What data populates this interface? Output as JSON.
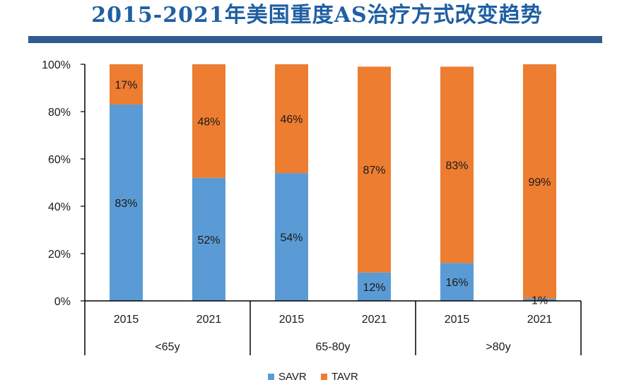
{
  "title": "2015-2021年美国重度AS治疗方式改变趋势",
  "colors": {
    "title": "#1f5fa3",
    "rule": "#2f5c8f",
    "savr": "#5b9bd5",
    "tavr": "#ed7d31",
    "axis": "#000000"
  },
  "chart_data": {
    "type": "bar",
    "stacked": true,
    "title": "2015-2021年美国重度AS治疗方式改变趋势",
    "categories": [
      "2015",
      "2021",
      "2015",
      "2021",
      "2015",
      "2021"
    ],
    "groups": [
      {
        "label": "<65y",
        "categories": [
          "2015",
          "2021"
        ]
      },
      {
        "label": "65-80y",
        "categories": [
          "2015",
          "2021"
        ]
      },
      {
        "label": ">80y",
        "categories": [
          "2015",
          "2021"
        ]
      }
    ],
    "series": [
      {
        "name": "SAVR",
        "color": "#5b9bd5",
        "values": [
          83,
          52,
          54,
          12,
          16,
          1
        ],
        "labels": [
          "83%",
          "52%",
          "54%",
          "12%",
          "16%",
          "1%"
        ]
      },
      {
        "name": "TAVR",
        "color": "#ed7d31",
        "values": [
          17,
          48,
          46,
          87,
          83,
          99
        ],
        "labels": [
          "17%",
          "48%",
          "46%",
          "87%",
          "83%",
          "99%"
        ]
      }
    ],
    "ylim": [
      0,
      100
    ],
    "yticks": [
      0,
      20,
      40,
      60,
      80,
      100
    ],
    "ytick_labels": [
      "0%",
      "20%",
      "40%",
      "60%",
      "80%",
      "100%"
    ],
    "legend": {
      "position": "bottom",
      "entries": [
        "SAVR",
        "TAVR"
      ]
    },
    "grid": false
  }
}
